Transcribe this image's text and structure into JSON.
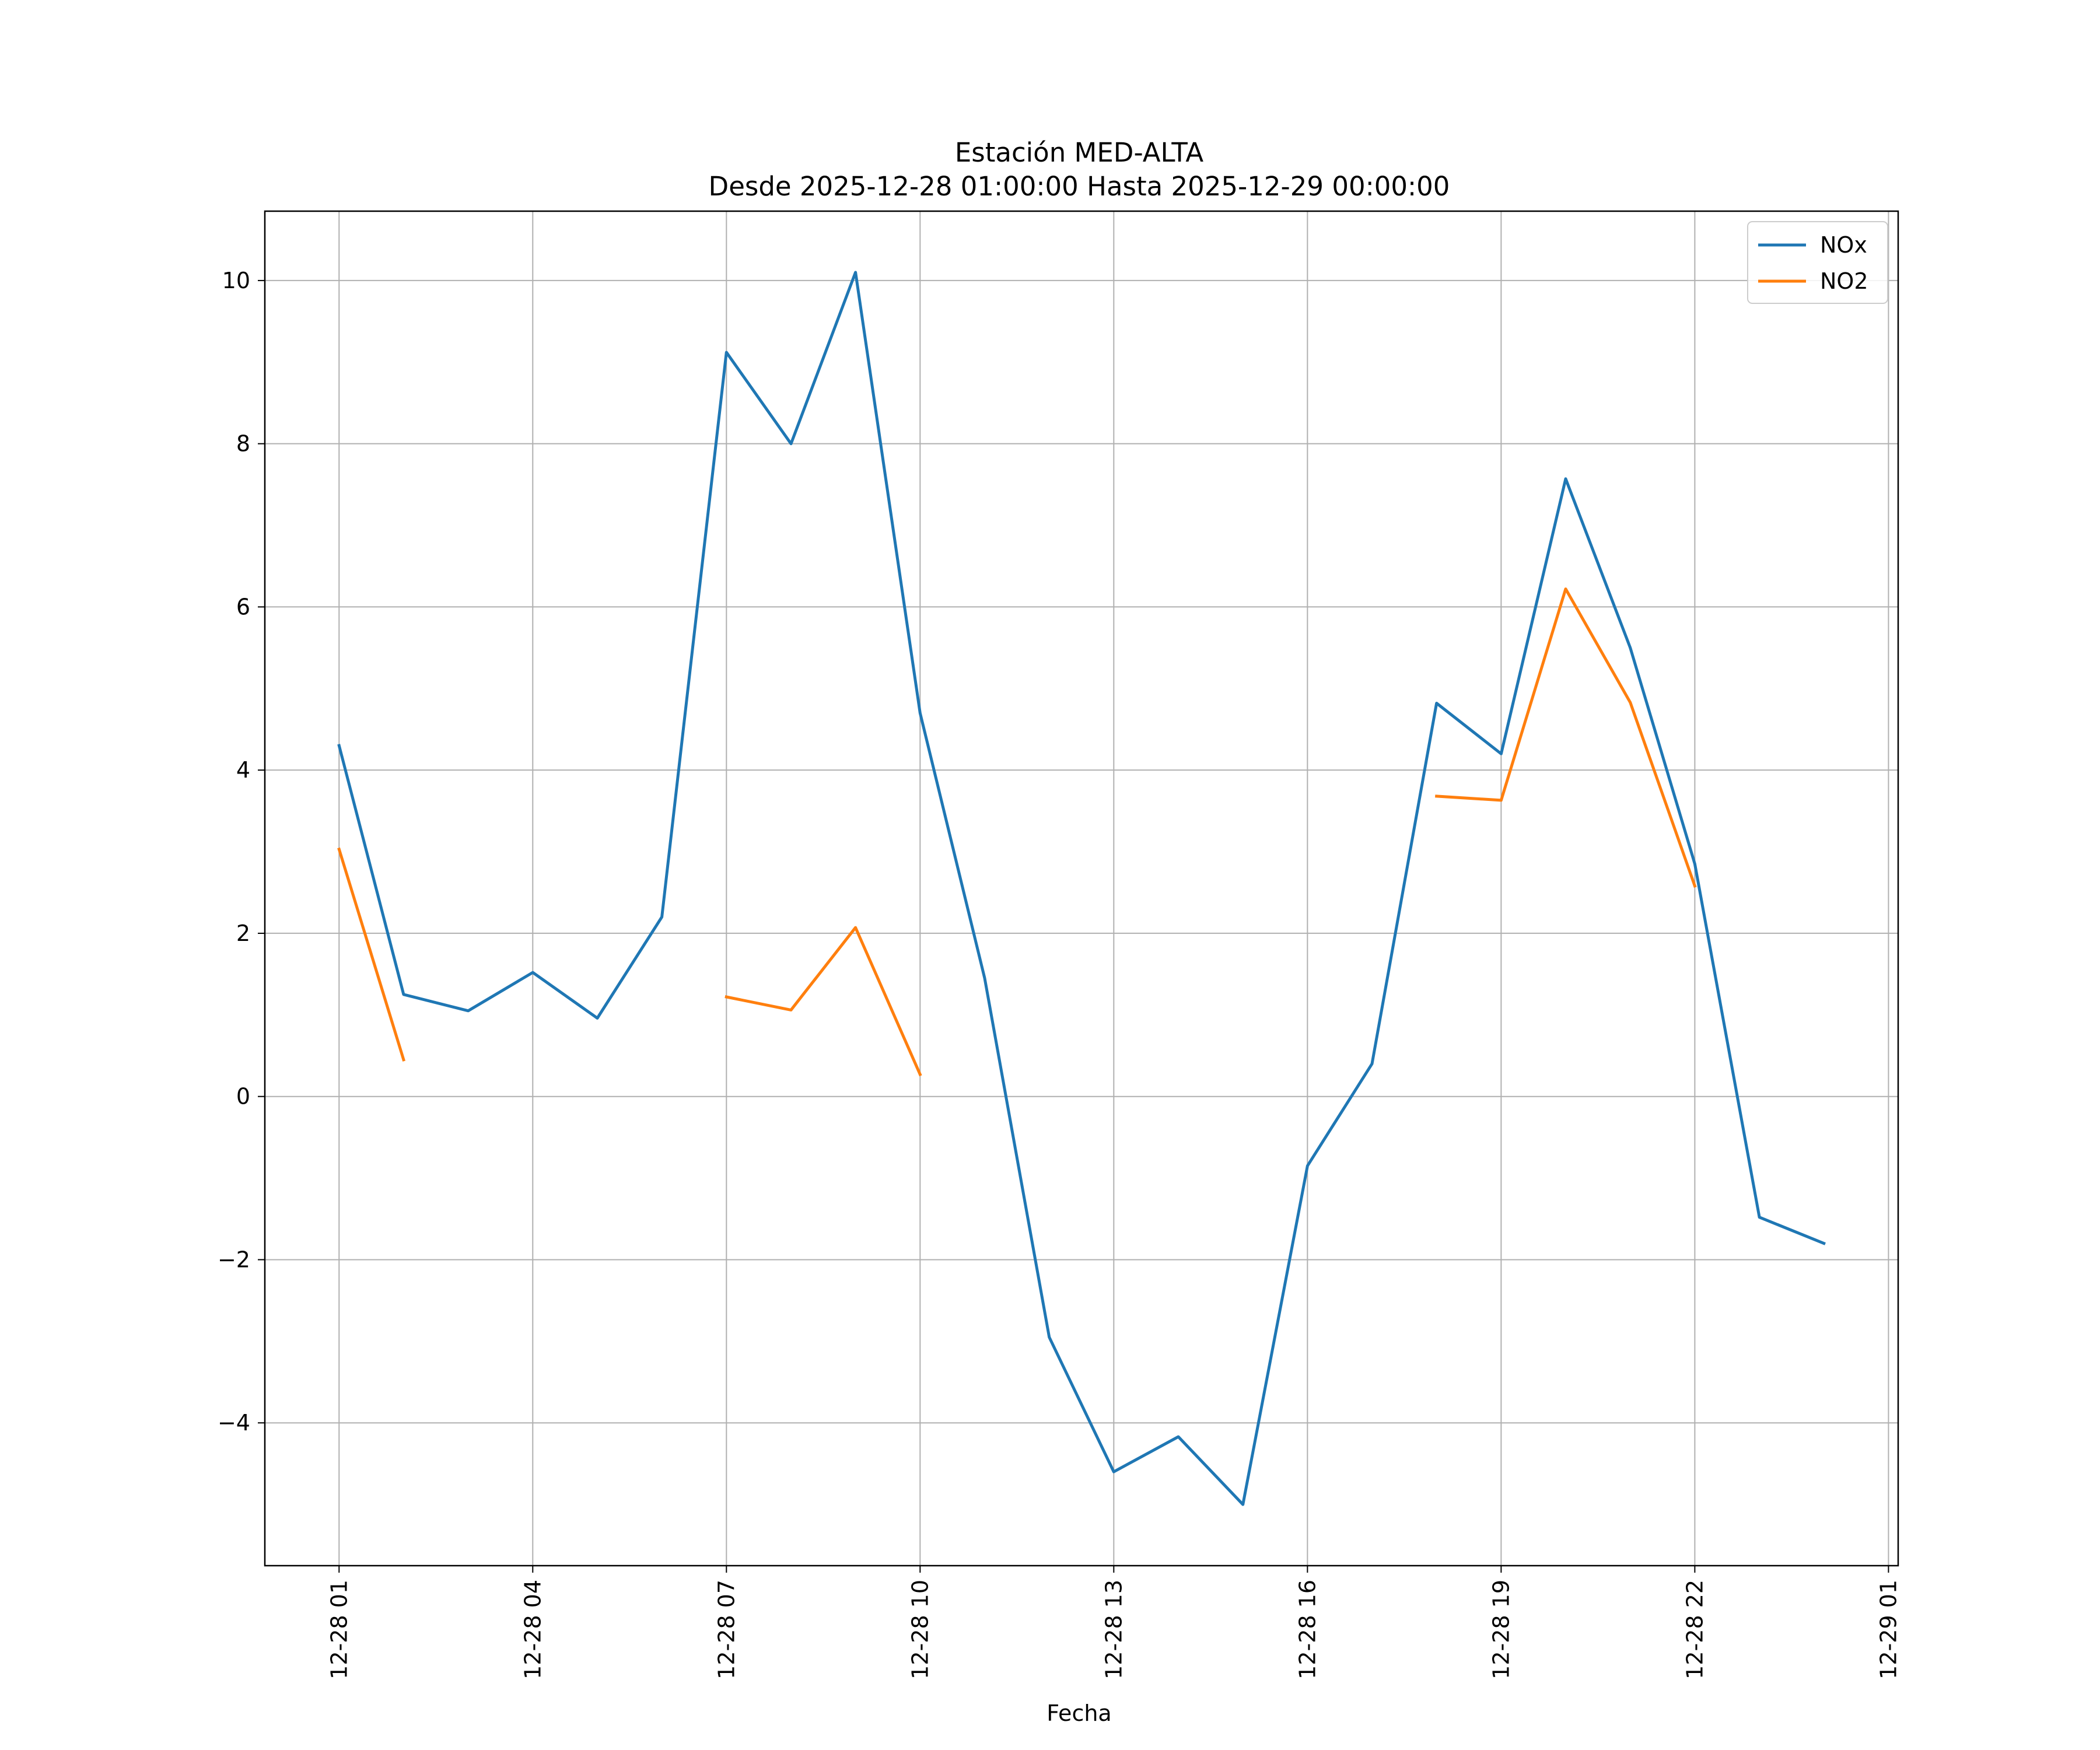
{
  "chart_data": {
    "type": "line",
    "title": "Estación MED-ALTA",
    "subtitle": "Desde 2025-12-28 01:00:00 Hasta 2025-12-29 00:00:00",
    "xlabel": "Fecha",
    "ylabel": "",
    "x": [
      "2025-12-28 01:00",
      "2025-12-28 02:00",
      "2025-12-28 03:00",
      "2025-12-28 04:00",
      "2025-12-28 05:00",
      "2025-12-28 06:00",
      "2025-12-28 07:00",
      "2025-12-28 08:00",
      "2025-12-28 09:00",
      "2025-12-28 10:00",
      "2025-12-28 11:00",
      "2025-12-28 12:00",
      "2025-12-28 13:00",
      "2025-12-28 14:00",
      "2025-12-28 15:00",
      "2025-12-28 16:00",
      "2025-12-28 17:00",
      "2025-12-28 18:00",
      "2025-12-28 19:00",
      "2025-12-28 20:00",
      "2025-12-28 21:00",
      "2025-12-28 22:00",
      "2025-12-28 23:00",
      "2025-12-29 00:00"
    ],
    "series": [
      {
        "name": "NOx",
        "color": "#1f77b4",
        "values": [
          4.3,
          1.25,
          1.05,
          1.52,
          0.96,
          2.2,
          9.12,
          8.0,
          10.1,
          4.7,
          1.45,
          -2.95,
          -4.6,
          -4.17,
          -5.0,
          -0.85,
          0.4,
          4.82,
          4.2,
          7.57,
          5.5,
          2.85,
          -1.48,
          -1.8
        ]
      },
      {
        "name": "NO2",
        "color": "#ff7f0e",
        "values": [
          3.03,
          0.45,
          null,
          null,
          null,
          null,
          1.22,
          1.06,
          2.07,
          0.27,
          null,
          null,
          null,
          null,
          null,
          null,
          null,
          3.68,
          3.63,
          6.22,
          4.83,
          2.58,
          null,
          null
        ]
      }
    ],
    "x_ticks": [
      "12-28 01",
      "12-28 04",
      "12-28 07",
      "12-28 10",
      "12-28 13",
      "12-28 16",
      "12-28 19",
      "12-28 22",
      "12-29 01"
    ],
    "y_ticks": [
      "−4",
      "−2",
      "0",
      "2",
      "4",
      "6",
      "8",
      "10"
    ],
    "ylim": [
      -5.75,
      10.85
    ],
    "xlim_hours": [
      -1.15,
      24.15
    ],
    "grid": true,
    "legend_position": "upper right"
  }
}
